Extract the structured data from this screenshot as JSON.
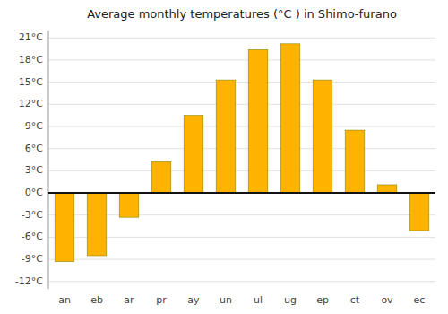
{
  "chart_data": {
    "type": "bar",
    "title": "Average monthly temperatures (°C ) in Shimo-furano",
    "categories": [
      "an",
      "eb",
      "ar",
      "pr",
      "ay",
      "un",
      "ul",
      "ug",
      "ep",
      "ct",
      "ov",
      "ec"
    ],
    "values": [
      -9.3,
      -8.5,
      -3.3,
      4.2,
      10.5,
      15.3,
      19.4,
      20.2,
      15.3,
      8.5,
      1.1,
      -5.1
    ],
    "color": "#FFB300",
    "ylim": [
      -13,
      22
    ],
    "yticks": [
      {
        "value": -12,
        "label": "-12°C"
      },
      {
        "value": -9,
        "label": "-9°C"
      },
      {
        "value": -6,
        "label": "-6°C"
      },
      {
        "value": -3,
        "label": "-3°C"
      },
      {
        "value": 0,
        "label": "0°C"
      },
      {
        "value": 3,
        "label": "3°C"
      },
      {
        "value": 6,
        "label": "6°C"
      },
      {
        "value": 9,
        "label": "9°C"
      },
      {
        "value": 12,
        "label": "12°C"
      },
      {
        "value": 15,
        "label": "15°C"
      },
      {
        "value": 18,
        "label": "18°C"
      },
      {
        "value": 21,
        "label": "21°C"
      }
    ],
    "grid": true
  }
}
